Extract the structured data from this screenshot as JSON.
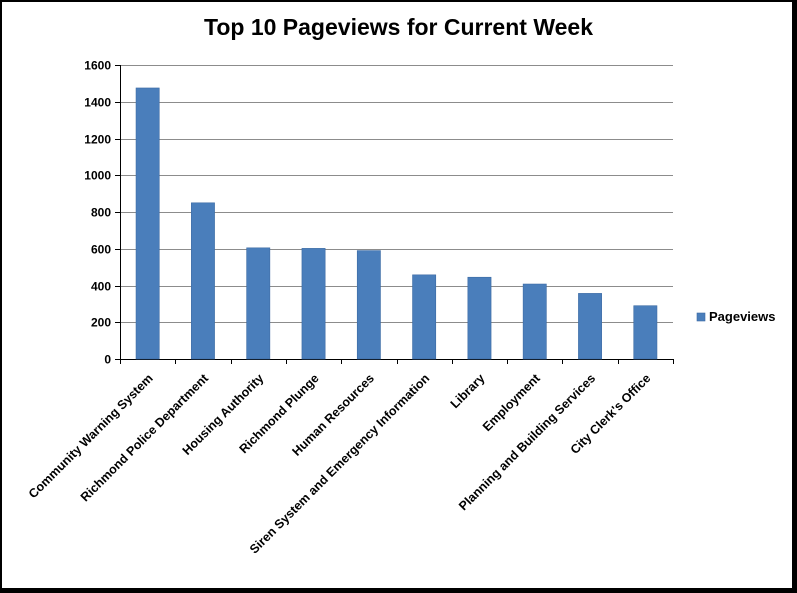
{
  "colors": {
    "bar": "#4a7ebb",
    "bar_edge": "#3c6aa3",
    "grid": "#8c8c8c",
    "axis": "#000000"
  },
  "chart_data": {
    "type": "bar",
    "title": "Top 10 Pageviews for Current Week",
    "xlabel": "",
    "ylabel": "",
    "categories": [
      "Community Warning System",
      "Richmond Police Department",
      "Housing Authority",
      "Richmond Plunge",
      "Human Resources",
      "Siren System and Emergency Information",
      "Library",
      "Employment",
      "Planning and Building Services",
      "City Clerk's Office"
    ],
    "series": [
      {
        "name": "Pageviews",
        "values": [
          1475,
          850,
          605,
          602,
          590,
          458,
          445,
          408,
          357,
          290
        ]
      }
    ],
    "ylim": [
      0,
      1600
    ],
    "yticks": [
      "0",
      "200",
      "400",
      "600",
      "800",
      "1000",
      "1200",
      "1400",
      "1600"
    ],
    "grid": true,
    "legend_position": "right"
  }
}
